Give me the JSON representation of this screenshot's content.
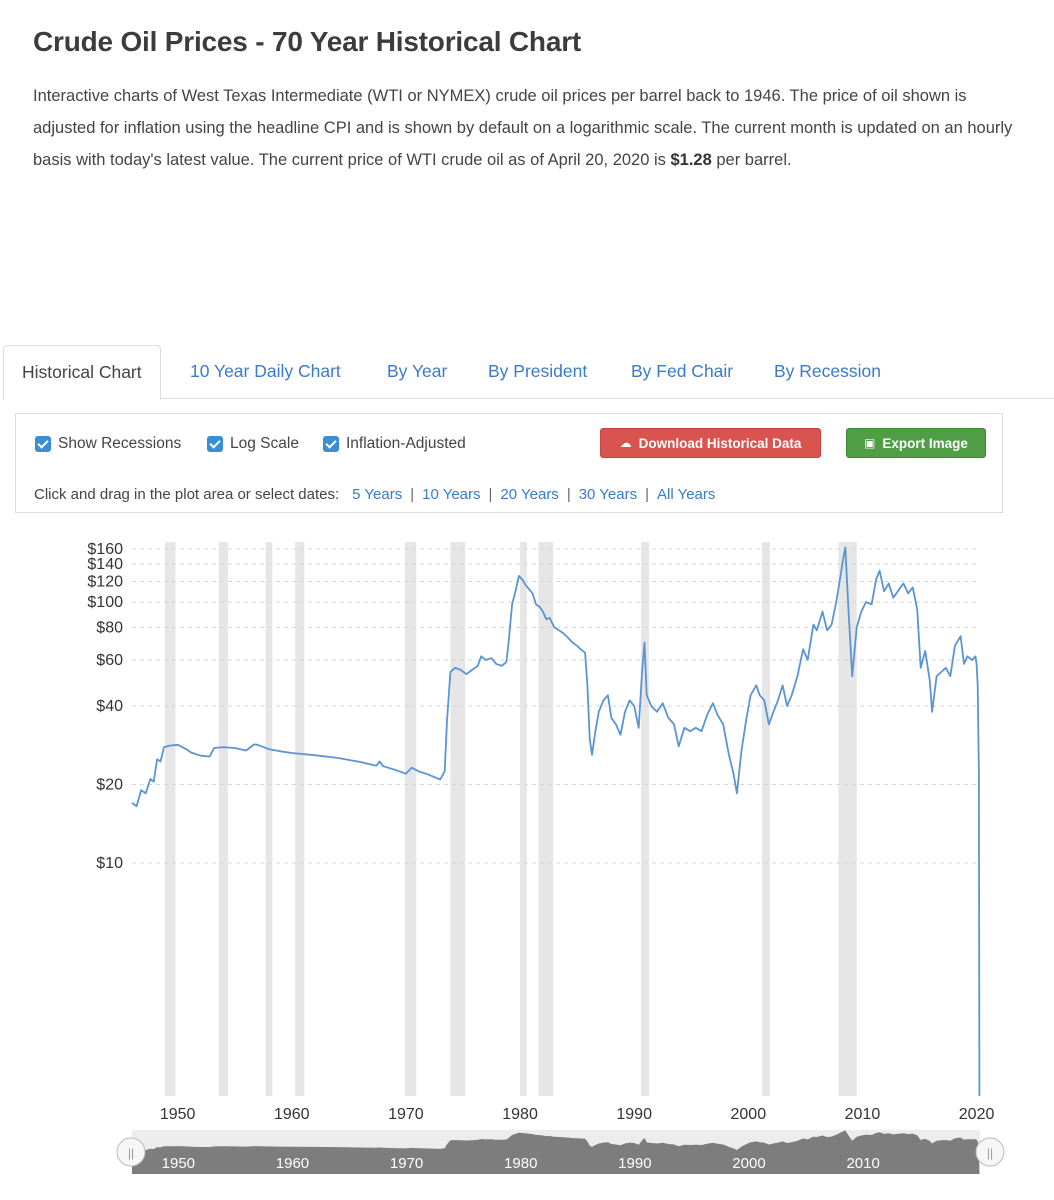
{
  "header": {
    "title": "Crude Oil Prices - 70 Year Historical Chart",
    "intro_text": "Interactive charts of West Texas Intermediate (WTI or NYMEX) crude oil prices per barrel back to 1946. The price of oil shown is adjusted for inflation using the headline CPI and is shown by default on a logarithmic scale. The current month is updated on an hourly basis with today's latest value. The current price of WTI crude oil as of April 20, 2020 is ",
    "current_price": "$1.28",
    "intro_tail": " per barrel."
  },
  "tabs": [
    {
      "label": "Historical Chart",
      "active": true
    },
    {
      "label": "10 Year Daily Chart"
    },
    {
      "label": "By Year"
    },
    {
      "label": "By President"
    },
    {
      "label": "By Fed Chair"
    },
    {
      "label": "By Recession"
    }
  ],
  "controls": {
    "show_recessions": "Show Recessions",
    "log_scale": "Log Scale",
    "inflation_adjusted": "Inflation-Adjusted",
    "download_button": "Download Historical Data",
    "export_button": "Export Image",
    "date_prompt": "Click and drag in the plot area or select dates:",
    "ranges": [
      "5 Years",
      "10 Years",
      "20 Years",
      "30 Years",
      "All Years"
    ]
  },
  "colors": {
    "line": "#5b94d3",
    "recession": "#e6e6e6",
    "download": "#d9534f",
    "export": "#4f9d45",
    "link": "#3a7bc8"
  },
  "chart_data": {
    "type": "line",
    "scale": "log",
    "grid": true,
    "ylim": [
      1.28,
      170
    ],
    "xlim": [
      1946,
      2020.3
    ],
    "y_ticks": [
      {
        "value": 160,
        "label": "$160"
      },
      {
        "value": 140,
        "label": "$140"
      },
      {
        "value": 120,
        "label": "$120"
      },
      {
        "value": 100,
        "label": "$100"
      },
      {
        "value": 80,
        "label": "$80"
      },
      {
        "value": 60,
        "label": "$60"
      },
      {
        "value": 40,
        "label": "$40"
      },
      {
        "value": 20,
        "label": "$20"
      },
      {
        "value": 10,
        "label": "$10"
      }
    ],
    "x_ticks": [
      {
        "value": 1950,
        "label": "1950"
      },
      {
        "value": 1960,
        "label": "1960"
      },
      {
        "value": 1970,
        "label": "1970"
      },
      {
        "value": 1980,
        "label": "1980"
      },
      {
        "value": 1990,
        "label": "1990"
      },
      {
        "value": 2000,
        "label": "2000"
      },
      {
        "value": 2010,
        "label": "2010"
      },
      {
        "value": 2020,
        "label": "2020"
      }
    ],
    "recessions": [
      [
        1948.9,
        1949.8
      ],
      [
        1953.6,
        1954.4
      ],
      [
        1957.7,
        1958.3
      ],
      [
        1960.3,
        1961.1
      ],
      [
        1969.9,
        1970.9
      ],
      [
        1973.9,
        1975.2
      ],
      [
        1980.0,
        1980.6
      ],
      [
        1981.6,
        1982.9
      ],
      [
        1990.6,
        1991.3
      ],
      [
        2001.2,
        2001.9
      ],
      [
        2007.9,
        2009.5
      ]
    ],
    "series": [
      {
        "values": [
          [
            1946.0,
            17
          ],
          [
            1946.4,
            16.5
          ],
          [
            1946.8,
            19
          ],
          [
            1947.2,
            18.5
          ],
          [
            1947.6,
            21
          ],
          [
            1947.9,
            20.5
          ],
          [
            1948.2,
            25
          ],
          [
            1948.5,
            24.5
          ],
          [
            1948.8,
            27.8
          ],
          [
            1949.3,
            28.2
          ],
          [
            1950.0,
            28.4
          ],
          [
            1950.7,
            27.4
          ],
          [
            1951.2,
            26.5
          ],
          [
            1952.0,
            25.8
          ],
          [
            1952.8,
            25.6
          ],
          [
            1953.2,
            27.6
          ],
          [
            1954.0,
            27.8
          ],
          [
            1955.0,
            27.6
          ],
          [
            1956.0,
            27
          ],
          [
            1956.7,
            28.5
          ],
          [
            1957.0,
            28.4
          ],
          [
            1958.0,
            27.3
          ],
          [
            1959.0,
            26.8
          ],
          [
            1960.0,
            26.4
          ],
          [
            1962.0,
            25.9
          ],
          [
            1964.0,
            25.3
          ],
          [
            1966.0,
            24.4
          ],
          [
            1967.4,
            23.6
          ],
          [
            1967.7,
            24.5
          ],
          [
            1968.0,
            23.5
          ],
          [
            1969.0,
            22.8
          ],
          [
            1970.0,
            22
          ],
          [
            1970.5,
            23.2
          ],
          [
            1971.2,
            22.4
          ],
          [
            1972.0,
            21.8
          ],
          [
            1973.0,
            20.9
          ],
          [
            1973.4,
            22.5
          ],
          [
            1973.6,
            35
          ],
          [
            1973.9,
            54
          ],
          [
            1974.3,
            56
          ],
          [
            1974.8,
            55
          ],
          [
            1975.3,
            53
          ],
          [
            1975.8,
            55
          ],
          [
            1976.3,
            57
          ],
          [
            1976.6,
            62
          ],
          [
            1977.0,
            60
          ],
          [
            1977.5,
            61
          ],
          [
            1977.9,
            58
          ],
          [
            1978.4,
            57
          ],
          [
            1978.8,
            59
          ],
          [
            1979.0,
            70
          ],
          [
            1979.3,
            98
          ],
          [
            1979.6,
            110
          ],
          [
            1979.9,
            126
          ],
          [
            1980.2,
            122
          ],
          [
            1980.5,
            116
          ],
          [
            1980.8,
            112
          ],
          [
            1981.1,
            108
          ],
          [
            1981.4,
            98
          ],
          [
            1981.7,
            96
          ],
          [
            1982.0,
            92
          ],
          [
            1982.3,
            86
          ],
          [
            1982.6,
            87
          ],
          [
            1983.0,
            80
          ],
          [
            1983.4,
            78
          ],
          [
            1983.8,
            76
          ],
          [
            1984.2,
            73
          ],
          [
            1984.6,
            70
          ],
          [
            1985.0,
            68
          ],
          [
            1985.3,
            66
          ],
          [
            1985.7,
            64
          ],
          [
            1985.9,
            48
          ],
          [
            1986.1,
            30
          ],
          [
            1986.3,
            26
          ],
          [
            1986.6,
            32
          ],
          [
            1986.9,
            38
          ],
          [
            1987.3,
            42
          ],
          [
            1987.7,
            44
          ],
          [
            1988.0,
            36
          ],
          [
            1988.4,
            34
          ],
          [
            1988.8,
            31
          ],
          [
            1989.2,
            38
          ],
          [
            1989.6,
            42
          ],
          [
            1990.0,
            40
          ],
          [
            1990.4,
            33
          ],
          [
            1990.7,
            55
          ],
          [
            1990.9,
            70
          ],
          [
            1991.1,
            44
          ],
          [
            1991.5,
            40
          ],
          [
            1992.0,
            38
          ],
          [
            1992.5,
            41
          ],
          [
            1993.0,
            36
          ],
          [
            1993.5,
            34
          ],
          [
            1993.9,
            28
          ],
          [
            1994.4,
            33
          ],
          [
            1994.9,
            32
          ],
          [
            1995.4,
            33
          ],
          [
            1995.9,
            32
          ],
          [
            1996.4,
            37
          ],
          [
            1996.9,
            41
          ],
          [
            1997.3,
            37
          ],
          [
            1997.8,
            34
          ],
          [
            1998.3,
            26
          ],
          [
            1998.7,
            22
          ],
          [
            1999.0,
            18.5
          ],
          [
            1999.4,
            27
          ],
          [
            1999.8,
            35
          ],
          [
            2000.2,
            44
          ],
          [
            2000.7,
            48
          ],
          [
            2001.0,
            44
          ],
          [
            2001.4,
            42
          ],
          [
            2001.8,
            34
          ],
          [
            2002.2,
            38
          ],
          [
            2002.6,
            42
          ],
          [
            2003.0,
            48
          ],
          [
            2003.4,
            40
          ],
          [
            2003.8,
            44
          ],
          [
            2004.3,
            52
          ],
          [
            2004.8,
            66
          ],
          [
            2005.2,
            60
          ],
          [
            2005.7,
            82
          ],
          [
            2006.0,
            78
          ],
          [
            2006.5,
            92
          ],
          [
            2006.9,
            78
          ],
          [
            2007.3,
            82
          ],
          [
            2007.7,
            100
          ],
          [
            2008.0,
            120
          ],
          [
            2008.3,
            145
          ],
          [
            2008.5,
            162
          ],
          [
            2008.8,
            90
          ],
          [
            2009.1,
            52
          ],
          [
            2009.5,
            80
          ],
          [
            2009.9,
            92
          ],
          [
            2010.3,
            100
          ],
          [
            2010.8,
            98
          ],
          [
            2011.2,
            122
          ],
          [
            2011.5,
            132
          ],
          [
            2011.9,
            110
          ],
          [
            2012.3,
            118
          ],
          [
            2012.7,
            104
          ],
          [
            2013.1,
            110
          ],
          [
            2013.6,
            118
          ],
          [
            2014.0,
            108
          ],
          [
            2014.4,
            114
          ],
          [
            2014.8,
            94
          ],
          [
            2015.1,
            56
          ],
          [
            2015.5,
            65
          ],
          [
            2015.9,
            50
          ],
          [
            2016.1,
            38
          ],
          [
            2016.5,
            52
          ],
          [
            2016.9,
            54
          ],
          [
            2017.3,
            56
          ],
          [
            2017.7,
            52
          ],
          [
            2018.1,
            68
          ],
          [
            2018.6,
            74
          ],
          [
            2018.9,
            58
          ],
          [
            2019.2,
            62
          ],
          [
            2019.6,
            60
          ],
          [
            2019.9,
            62
          ],
          [
            2020.0,
            58
          ],
          [
            2020.1,
            48
          ],
          [
            2020.2,
            22
          ],
          [
            2020.25,
            1.28
          ]
        ]
      }
    ]
  },
  "navigator": {
    "labels": [
      "1950",
      "1960",
      "1970",
      "1980",
      "1990",
      "2000",
      "2010"
    ]
  }
}
